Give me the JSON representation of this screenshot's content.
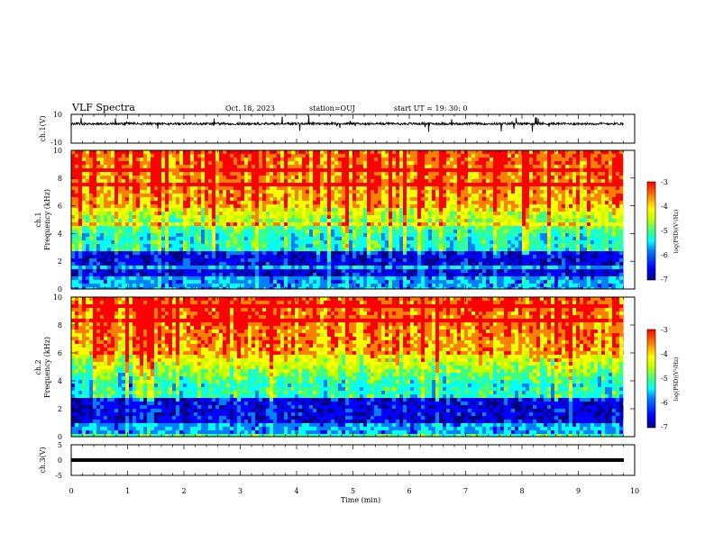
{
  "header": {
    "title": "VLF Spectra",
    "date": "Oct. 18, 2023",
    "station": "station=OUJ",
    "start": "start UT =   19: 30: 0"
  },
  "chart_data": {
    "type": "heatmap",
    "xlabel": "Time (min)",
    "xlim": [
      0,
      10
    ],
    "x_ticks": [
      "0",
      "1",
      "2",
      "3",
      "4",
      "5",
      "6",
      "7",
      "8",
      "9",
      "10"
    ],
    "data_end_min": 9.8,
    "colors": {
      "colormap": [
        "#00007f",
        "#0000ff",
        "#0080ff",
        "#00ffff",
        "#40ff80",
        "#c0ff00",
        "#ffff00",
        "#ff8000",
        "#ff0000"
      ]
    },
    "panels": [
      {
        "id": "ch1-waveform",
        "type": "line",
        "ylabel": "ch.1(V)",
        "ylim": [
          -10,
          10
        ],
        "y_ticks": [
          "10",
          "-10"
        ],
        "baseline_v": 3.5
      },
      {
        "id": "ch1-spectrogram",
        "type": "heatmap",
        "ylabel_top": "ch.1",
        "ylabel": "Frequency (kHz)",
        "ylim": [
          0,
          10
        ],
        "y_ticks": [
          "10",
          "8",
          "6",
          "4",
          "2",
          "0"
        ],
        "colorbar": {
          "label": "log(PSD)(V²/Hz)",
          "range": [
            -7,
            -3
          ],
          "ticks": [
            "-3",
            "-4",
            "-5",
            "-6",
            "-7"
          ]
        }
      },
      {
        "id": "ch2-spectrogram",
        "type": "heatmap",
        "ylabel_top": "ch.2",
        "ylabel": "Frequency (kHz)",
        "ylim": [
          0,
          10
        ],
        "y_ticks": [
          "10",
          "8",
          "6",
          "4",
          "2",
          "0"
        ],
        "colorbar": {
          "label": "log(PSD)(V²/Hz)",
          "range": [
            -7,
            -3
          ],
          "ticks": [
            "-3",
            "-4",
            "-5",
            "-6",
            "-7"
          ]
        }
      },
      {
        "id": "ch3-waveform",
        "type": "line",
        "ylabel": "ch.3(V)",
        "ylim": [
          -5,
          5
        ],
        "y_ticks": [
          "5",
          "0",
          "-5"
        ],
        "baseline_v": 0
      }
    ]
  }
}
